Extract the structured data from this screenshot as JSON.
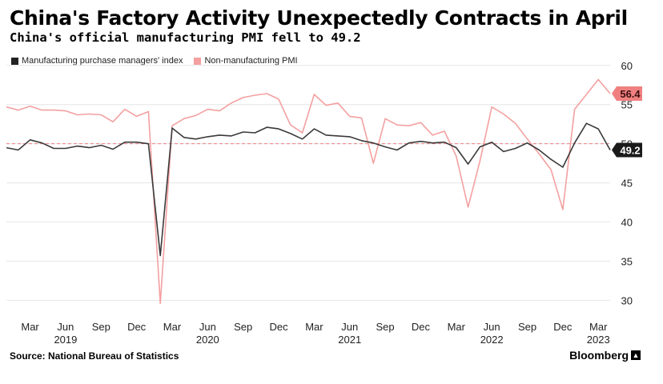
{
  "header": {
    "title": "China's Factory Activity Unexpectedly Contracts in April",
    "subtitle": "China's official manufacturing PMI fell to 49.2"
  },
  "footer": {
    "source": "Source: National Bureau of Statistics",
    "brand": "Bloomberg"
  },
  "colors": {
    "manufacturing": "#3a3a3a",
    "non_manufacturing": "#f4a0a0",
    "end_label_nonmfg": "#f08080",
    "end_label_mfg": "#1a1a1a",
    "reference_line": "#f08080",
    "grid": "#e6e6e6"
  },
  "chart_data": {
    "type": "line",
    "title": "China's Factory Activity Unexpectedly Contracts in April",
    "subtitle": "China's official manufacturing PMI fell to 49.2",
    "x_start": "2019-01",
    "x_end": "2023-04",
    "x_tick_labels": [
      {
        "date": "2019-03",
        "label": "Mar"
      },
      {
        "date": "2019-06",
        "label": "Jun"
      },
      {
        "date": "2019-09",
        "label": "Sep"
      },
      {
        "date": "2019-12",
        "label": "Dec"
      },
      {
        "date": "2020-03",
        "label": "Mar"
      },
      {
        "date": "2020-06",
        "label": "Jun"
      },
      {
        "date": "2020-09",
        "label": "Sep"
      },
      {
        "date": "2020-12",
        "label": "Dec"
      },
      {
        "date": "2021-03",
        "label": "Mar"
      },
      {
        "date": "2021-06",
        "label": "Jun"
      },
      {
        "date": "2021-09",
        "label": "Sep"
      },
      {
        "date": "2021-12",
        "label": "Dec"
      },
      {
        "date": "2022-03",
        "label": "Mar"
      },
      {
        "date": "2022-06",
        "label": "Jun"
      },
      {
        "date": "2022-09",
        "label": "Sep"
      },
      {
        "date": "2022-12",
        "label": "Dec"
      },
      {
        "date": "2023-03",
        "label": "Mar"
      }
    ],
    "year_labels": [
      {
        "date": "2019-06",
        "label": "2019"
      },
      {
        "date": "2020-06",
        "label": "2020"
      },
      {
        "date": "2021-06",
        "label": "2021"
      },
      {
        "date": "2022-06",
        "label": "2022"
      },
      {
        "date": "2023-03",
        "label": "2023"
      }
    ],
    "ylim": [
      28,
      61
    ],
    "y_ticks": [
      30,
      35,
      40,
      45,
      50,
      55,
      60
    ],
    "reference_line": 50,
    "grid": true,
    "legend_position": "top-left",
    "series": [
      {
        "name": "Manufacturing purchase managers' index",
        "end_label": "49.2",
        "values": [
          49.5,
          49.2,
          50.5,
          50.1,
          49.4,
          49.4,
          49.7,
          49.5,
          49.8,
          49.3,
          50.2,
          50.2,
          50.0,
          35.7,
          52.0,
          50.8,
          50.6,
          50.9,
          51.1,
          51.0,
          51.5,
          51.4,
          52.1,
          51.9,
          51.3,
          50.6,
          51.9,
          51.1,
          51.0,
          50.9,
          50.4,
          50.1,
          49.6,
          49.2,
          50.1,
          50.3,
          50.1,
          50.2,
          49.5,
          47.4,
          49.6,
          50.2,
          49.0,
          49.4,
          50.1,
          49.2,
          48.0,
          47.0,
          50.1,
          52.6,
          51.9,
          49.2
        ]
      },
      {
        "name": "Non-manufacturing PMI",
        "end_label": "56.4",
        "values": [
          54.7,
          54.3,
          54.8,
          54.3,
          54.3,
          54.2,
          53.7,
          53.8,
          53.7,
          52.8,
          54.4,
          53.5,
          54.1,
          29.6,
          52.3,
          53.2,
          53.6,
          54.4,
          54.2,
          55.2,
          55.9,
          56.2,
          56.4,
          55.7,
          52.4,
          51.4,
          56.3,
          54.9,
          55.2,
          53.5,
          53.3,
          47.5,
          53.2,
          52.4,
          52.3,
          52.7,
          51.1,
          51.6,
          48.4,
          41.9,
          47.8,
          54.7,
          53.8,
          52.6,
          50.6,
          48.7,
          46.7,
          41.6,
          54.4,
          56.3,
          58.2,
          56.4
        ]
      }
    ]
  }
}
